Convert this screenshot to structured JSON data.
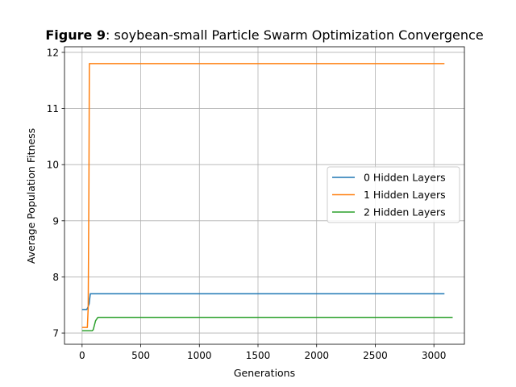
{
  "chart_data": {
    "type": "line",
    "title_bold": "Figure 9",
    "title_rest": ": soybean-small Particle Swarm Optimization Convergence",
    "xlabel": "Generations",
    "ylabel": "Average Population Fitness",
    "xlim": [
      -150,
      3260
    ],
    "ylim": [
      6.8,
      12.1
    ],
    "xticks": [
      0,
      500,
      1000,
      1500,
      2000,
      2500,
      3000
    ],
    "xtick_labels": [
      "0",
      "500",
      "1000",
      "1500",
      "2000",
      "2500",
      "3000"
    ],
    "yticks": [
      7,
      8,
      9,
      10,
      11,
      12
    ],
    "ytick_labels": [
      "7",
      "8",
      "9",
      "10",
      "11",
      "12"
    ],
    "grid": true,
    "legend_position": "center-right",
    "series": [
      {
        "name": "0 Hidden Layers",
        "color": "#1f77b4",
        "points": [
          [
            0,
            7.42
          ],
          [
            40,
            7.42
          ],
          [
            50,
            7.46
          ],
          [
            60,
            7.52
          ],
          [
            70,
            7.7
          ],
          [
            3090,
            7.7
          ]
        ]
      },
      {
        "name": "1 Hidden Layers",
        "color": "#ff7f0e",
        "points": [
          [
            0,
            7.1
          ],
          [
            45,
            7.1
          ],
          [
            52,
            7.45
          ],
          [
            58,
            9.5
          ],
          [
            62,
            11.8
          ],
          [
            3090,
            11.8
          ]
        ]
      },
      {
        "name": "2 Hidden Layers",
        "color": "#2ca02c",
        "points": [
          [
            0,
            7.04
          ],
          [
            85,
            7.04
          ],
          [
            95,
            7.06
          ],
          [
            115,
            7.22
          ],
          [
            135,
            7.28
          ],
          [
            3160,
            7.28
          ]
        ]
      }
    ]
  }
}
